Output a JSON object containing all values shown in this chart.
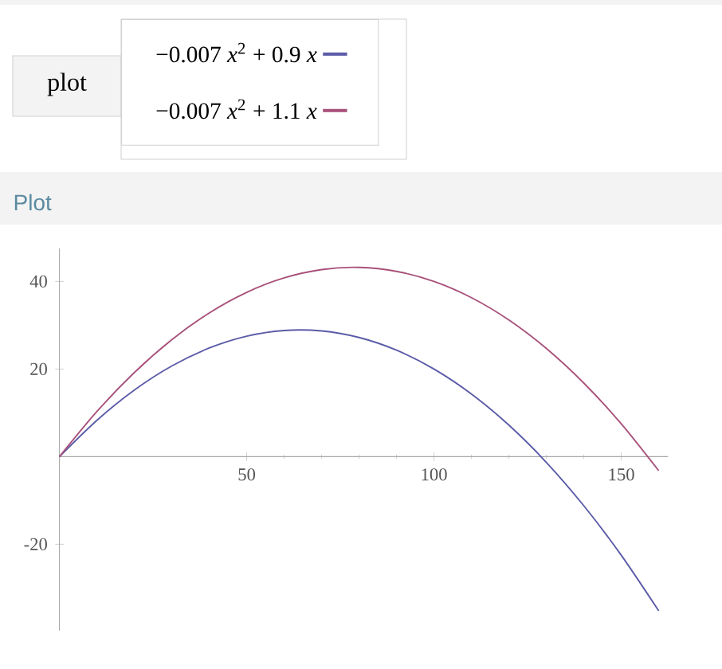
{
  "chart_data": {
    "type": "line",
    "title": "Plot",
    "annotations": [
      "plot"
    ],
    "x": [
      0,
      10,
      20,
      30,
      40,
      50,
      60,
      70,
      80,
      90,
      100,
      110,
      120,
      130,
      140,
      150,
      160
    ],
    "series": [
      {
        "name": "−0.007 *x*$^{2}$ + 0.9 *x*",
        "color": "#5b5ba8",
        "values": [
          0,
          8.3,
          15.2,
          20.7,
          24.8,
          27.5,
          28.8,
          28.7,
          27.2,
          24.3,
          20,
          14.3,
          7.2,
          -1.3,
          -11.2,
          -22.5,
          -35.2
        ]
      },
      {
        "name": "−0.007 *x*$^{2}$ + 1.1 *x*",
        "color": "#a8517a",
        "values": [
          0,
          10.3,
          19.2,
          26.7,
          32.8,
          37.5,
          40.8,
          42.7,
          43.2,
          42.3,
          40,
          36.3,
          31.2,
          24.7,
          16.8,
          7.5,
          -3.2
        ]
      }
    ],
    "xlim": [
      0,
      162.5
    ],
    "ylim": [
      -39.7,
      47.5
    ],
    "xticks": [
      50,
      100,
      150
    ],
    "yticks": [
      -20,
      20,
      40
    ],
    "legend": "top left"
  }
}
